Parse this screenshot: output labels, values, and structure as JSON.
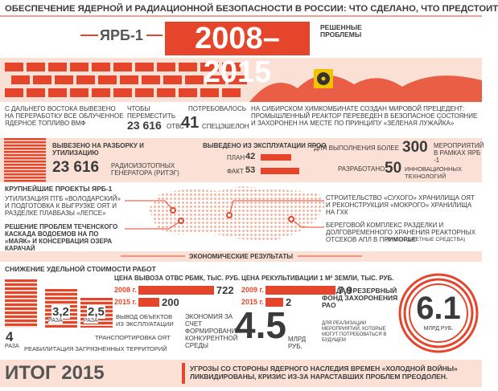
{
  "header": {
    "title": "ОБЕСПЕЧЕНИЕ ЯДЕРНОЙ И РАДИАЦИОННОЙ БЕЗОПАСНОСТИ В РОССИИ: ЧТО СДЕЛАНО, ЧТО ПРЕДСТОИТ",
    "program": "ЯРБ-1",
    "period": "2008–2015",
    "subtitle": "РЕШЕННЫЕ ПРОБЛЕМЫ"
  },
  "solved": {
    "fuel_text": "С ДАЛЬНЕГО ВОСТОКА ВЫВЕЗЕНО НА ПЕРЕРАБОТКУ ВСЕ ОБЛУЧЕННОЕ ЯДЕРНОЕ ТОПЛИВО ВМФ",
    "move_label": "ЧТОБЫ ПЕРЕМЕСТИТЬ",
    "move_value": "23 616",
    "move_unit": "ОТВС",
    "trains_label": "ПОТРЕБОВАЛОСЬ",
    "trains_value": 41,
    "trains_unit": "СПЕЦЭШЕЛОН",
    "shk_text": "НА СИБИРСКОМ ХИМКОМБИНАТЕ СОЗДАН МИРОВОЙ ПРЕЦЕДЕНТ: ПРОМЫШЛЕННЫЙ РЕАКТОР ПЕРЕВЕДЕН В БЕЗОПАСНОЕ СОСТОЯНИЕ И ЗАХОРОНЕН НА МЕСТЕ ПО ПРИНЦИПУ «ЗЕЛЕНАЯ ЛУЖАЙКА»"
  },
  "disposal": {
    "riteg_label": "ВЫВЕЗЕНО НА РАЗБОРКУ И УТИЛИЗАЦИЮ",
    "riteg_value": "23 616",
    "riteg_unit": "РАДИОИЗОТОПНЫХ ГЕНЕРАТОРА (РИТЭГ)",
    "decom_title": "ВЫВЕДЕНО ИЗ ЭКСПЛУАТАЦИИ ЯРОО",
    "plan_label": "ПЛАН",
    "plan_value": 42,
    "fact_label": "ФАКТ",
    "fact_value": 53,
    "measures_prefix": "ДЛЯ ВЫПОЛНЕНИЯ БОЛЕЕ",
    "measures_value": 300,
    "measures_unit": "МЕРОПРИЯТИЙ В РАМКАХ ЯРБ -1",
    "tech_prefix": "РАЗРАБОТАНО",
    "tech_value": 50,
    "tech_unit": "ИННОВАЦИОННЫХ ТЕХНОЛОГИЙ"
  },
  "projects": {
    "title": "КРУПНЕЙШИЕ ПРОЕКТЫ ЯРБ-1",
    "items": [
      "УТИЛИЗАЦИЯ ПТБ «ВОЛОДАРСКИЙ» И ПОДГОТОВКА К ВЫГРУЗКЕ ОЯТ И РАЗДЕЛКЕ ПЛАВБАЗЫ «ЛЕПСЕ»",
      "РЕШЕНИЕ ПРОБЛЕМ ТЕЧЕНСКОГО КАСКАДА ВОДОЕМОВ НА ПО «МАЯК» И КОНСЕРВАЦИЯ ОЗЕРА КАРАЧАЙ",
      "СТРОИТЕЛЬСТВО «СУХОГО» ХРАНИЛИЩА ОЯТ И РЕКОНСТРУКЦИЯ «МОКРОГО» ХРАНИЛИЩА НА ГХК",
      "БЕРЕГОВОЙ КОМПЛЕКС РАЗДЕЛКИ И ДОЛГОВРЕМЕННОГО ХРАНЕНИЯ РЕАКТОРНЫХ ОТСЕКОВ АПЛ В ПРИМОРЬЕ"
    ],
    "note": "(ВНЕБЮДЖЕТНЫЕ СРЕДСТВА)"
  },
  "economics": {
    "title": "ЭКОНОМИЧЕСКИЕ РЕЗУЛЬТАТЫ",
    "cost_title": "СНИЖЕНИЕ УДЕЛЬНОЙ СТОИМОСТИ РАБОТ",
    "reductions": [
      {
        "value": 4,
        "label": "4",
        "unit": "РАЗА",
        "text": "РЕАБИЛИТАЦИЯ ЗАГРЯЗНЕННЫХ ТЕРРИТОРИЙ"
      },
      {
        "value": 3.2,
        "label": "3,2",
        "unit": "РАЗА",
        "text": "ТРАНСПОРТИРОВКА ОЯТ"
      },
      {
        "value": 2.5,
        "label": "2,5",
        "unit": "РАЗА",
        "text": "ВЫВОД ОБЪЕКТОВ ИЗ ЭКСПЛУАТАЦИИ"
      }
    ],
    "fuel_price": {
      "title": "ЦЕНА ВЫВОЗА ОТВС РБМК, ТЫС. РУБ.",
      "years": [
        "2008 г.",
        "2015 г."
      ],
      "values": [
        722,
        200
      ]
    },
    "land_price": {
      "title": "ЦЕНА РЕКУЛЬТИВАЦИИ 1 М² ЗЕМЛИ, ТЫС. РУБ.",
      "years": [
        "2009 г.",
        "2015 г."
      ],
      "values": [
        {
          "value": 7.9,
          "label": "7,9"
        },
        2
      ]
    },
    "savings_text": "ЭКОНОМИЯ ЗА СЧЕТ ФОРМИРОВАНИЯ КОНКУРЕНТНОЙ СРЕДЫ",
    "savings_value": 4.5,
    "savings_unit": "МЛРД РУБ.",
    "fund_title": "СОЗДАН РЕЗЕРВНЫЙ ФОНД ЗАХОРОНЕНИЯ РАО",
    "fund_note": "ДЛЯ РЕАЛИЗАЦИИ МЕРОПРИЯТИЙ, КОТОРЫЕ МОГУТ ПОТРЕБОВАТЬСЯ В БУДУЩЕМ",
    "fund_value": 6.1,
    "fund_unit": "МЛРД РУБ."
  },
  "summary": {
    "title": "ИТОГ 2015",
    "text": "УГРОЗЫ СО СТОРОНЫ ЯДЕРНОГО НАСЛЕДИЯ ВРЕМЕН «ХОЛОДНОЙ ВОЙНЫ» ЛИКВИДИРОВАНЫ, КРИЗИС ИЗ-ЗА НАРАСТАВШИХ ПРОБЛЕМ ПРЕОДОЛЕН."
  }
}
